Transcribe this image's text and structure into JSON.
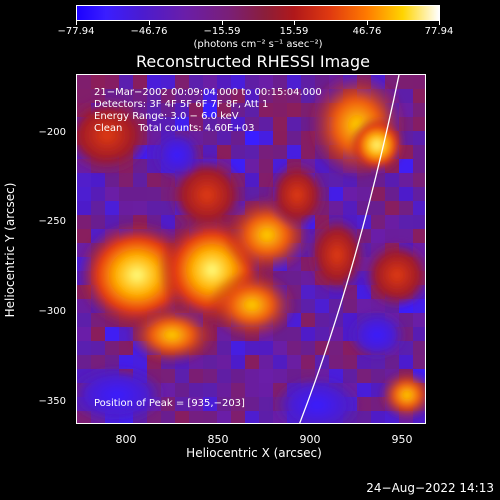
{
  "colorbar": {
    "ticks": [
      "−77.94",
      "−46.76",
      "−15.59",
      "15.59",
      "46.76",
      "77.94"
    ],
    "units": "(photons cm⁻² s⁻¹ asec⁻²)"
  },
  "title": "Reconstructed RHESSI Image",
  "info": {
    "line1": "21−Mar−2002 00:09:04.000 to 00:15:04.000",
    "line2": "Detectors: 3F 4F 5F 6F 7F 8F, Att 1",
    "line3": "Energy Range: 3.0 − 6.0 keV",
    "line4": "Clean     Total counts: 4.60E+03"
  },
  "peak": "Position of Peak = [935,−203]",
  "axes": {
    "x_title": "Heliocentric X (arcsec)",
    "y_title": "Heliocentric Y (arcsec)",
    "x_ticks": [
      "800",
      "850",
      "900",
      "950"
    ],
    "y_ticks": [
      "−200",
      "−250",
      "−300",
      "−350"
    ]
  },
  "timestamp": "24−Aug−2022 14:13",
  "colors": {
    "background": "#000000",
    "limb": "#ffffff"
  }
}
